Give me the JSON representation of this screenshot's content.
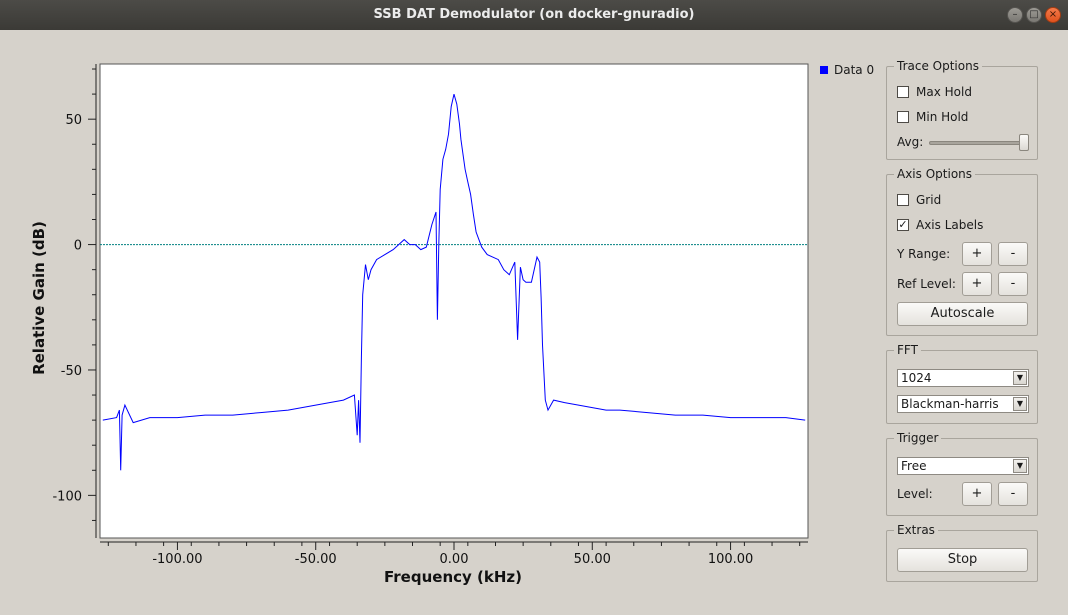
{
  "window": {
    "title": "SSB DAT Demodulator (on docker-gnuradio)",
    "buttons": [
      "minimize",
      "maximize",
      "close"
    ]
  },
  "legend": {
    "label": "Data 0",
    "color": "#0000ff"
  },
  "trace_options": {
    "title": "Trace Options",
    "max_hold": {
      "label": "Max Hold",
      "checked": false
    },
    "min_hold": {
      "label": "Min Hold",
      "checked": false
    },
    "avg_label": "Avg:",
    "avg_level": 1.0
  },
  "axis_options": {
    "title": "Axis Options",
    "grid": {
      "label": "Grid",
      "checked": false
    },
    "axis_labels": {
      "label": "Axis Labels",
      "checked": true
    },
    "y_range_label": "Y Range:",
    "ref_level_label": "Ref Level:",
    "plus": "+",
    "minus": "-",
    "autoscale_label": "Autoscale"
  },
  "fft": {
    "title": "FFT",
    "size": "1024",
    "window": "Blackman-harris"
  },
  "trigger": {
    "title": "Trigger",
    "mode": "Free",
    "level_label": "Level:",
    "plus": "+",
    "minus": "-"
  },
  "extras": {
    "title": "Extras",
    "stop_label": "Stop"
  },
  "chart_data": {
    "type": "line",
    "xlabel": "Frequency (kHz)",
    "ylabel": "Relative Gain (dB)",
    "xlim": [
      -128,
      128
    ],
    "ylim": [
      -117,
      72
    ],
    "xticks": [
      -100,
      -50,
      0,
      50,
      100
    ],
    "xtick_labels": [
      "-100.00",
      "-50.00",
      "0.00",
      "50.00",
      "100.00"
    ],
    "yticks": [
      50,
      0,
      -50,
      -100
    ],
    "ytick_labels": [
      "50",
      "0",
      "-50",
      "-100"
    ],
    "grid": false,
    "reference_line": {
      "y": 0,
      "color": "#008080",
      "style": "dotted"
    },
    "series": [
      {
        "name": "Data 0",
        "color": "#0000ff",
        "x": [
          -127,
          -122,
          -121,
          -120.5,
          -120,
          -119,
          -116,
          -110,
          -100,
          -90,
          -80,
          -70,
          -60,
          -50,
          -45,
          -40,
          -36,
          -35,
          -34.5,
          -34,
          -33.5,
          -33,
          -32,
          -31,
          -30,
          -28,
          -25,
          -22,
          -20,
          -18,
          -16,
          -14,
          -12,
          -10,
          -8,
          -6.5,
          -6,
          -5.5,
          -5,
          -4,
          -3,
          -2,
          -1,
          0,
          1,
          2,
          2.5,
          3,
          4,
          5,
          6,
          7,
          8,
          9,
          10,
          12,
          14,
          16,
          18,
          20,
          22,
          23,
          24,
          25,
          26,
          28,
          30,
          31,
          31.5,
          32,
          33,
          34,
          36,
          40,
          45,
          50,
          55,
          60,
          70,
          80,
          90,
          100,
          110,
          120,
          127
        ],
        "y": [
          -70,
          -69,
          -66,
          -90,
          -68,
          -64,
          -71,
          -69,
          -69,
          -68,
          -68,
          -67,
          -66,
          -64,
          -63,
          -62,
          -60,
          -76,
          -62,
          -79,
          -45,
          -20,
          -8,
          -14,
          -10,
          -6,
          -4,
          -2,
          0,
          2,
          0,
          0,
          -2,
          -1,
          8,
          13,
          -30,
          0,
          22,
          34,
          38,
          44,
          55,
          60,
          56,
          48,
          42,
          38,
          30,
          25,
          20,
          12,
          5,
          2,
          -1,
          -4,
          -5,
          -6,
          -10,
          -12,
          -7,
          -38,
          -9,
          -14,
          -15,
          -15,
          -5,
          -7,
          -21,
          -40,
          -62,
          -66,
          -62,
          -63,
          -64,
          -65,
          -66,
          -66,
          -67,
          -68,
          -68,
          -69,
          -69,
          -69,
          -70
        ]
      }
    ]
  }
}
